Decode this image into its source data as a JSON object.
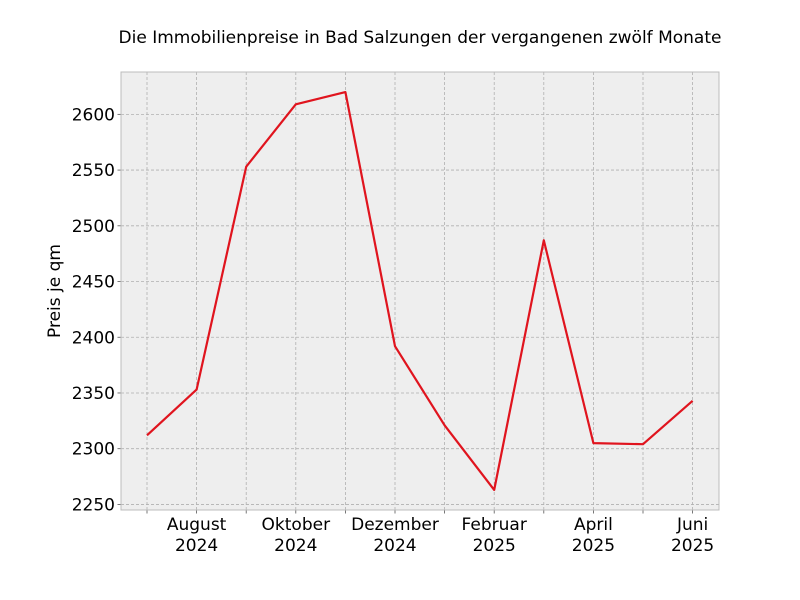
{
  "chart_data": {
    "type": "line",
    "title": "Die Immobilienpreise in Bad Salzungen der vergangenen zwölf Monate",
    "xlabel": "",
    "ylabel": "Preis je qm",
    "x": [
      "2024-07",
      "2024-08",
      "2024-09",
      "2024-10",
      "2024-11",
      "2024-12",
      "2025-01",
      "2025-02",
      "2025-03",
      "2025-04",
      "2025-05",
      "2025-06"
    ],
    "series": [
      {
        "values": [
          2312,
          2353,
          2553,
          2609,
          2620,
          2392,
          2321,
          2263,
          2487,
          2305,
          2304,
          2343
        ],
        "color": "#e0141e"
      }
    ],
    "ylim": [
      2245,
      2638
    ],
    "yticks": [
      2250,
      2300,
      2350,
      2400,
      2450,
      2500,
      2550,
      2600
    ],
    "xticks": [
      {
        "x": "2024-08",
        "month": "August",
        "year": "2024"
      },
      {
        "x": "2024-10",
        "month": "Oktober",
        "year": "2024"
      },
      {
        "x": "2024-12",
        "month": "Dezember",
        "year": "2024"
      },
      {
        "x": "2025-02",
        "month": "Februar",
        "year": "2025"
      },
      {
        "x": "2025-04",
        "month": "April",
        "year": "2025"
      },
      {
        "x": "2025-06",
        "month": "Juni",
        "year": "2025"
      }
    ],
    "grid": true,
    "background": "#eeeeee",
    "frame_color": "#bcbcbc"
  }
}
